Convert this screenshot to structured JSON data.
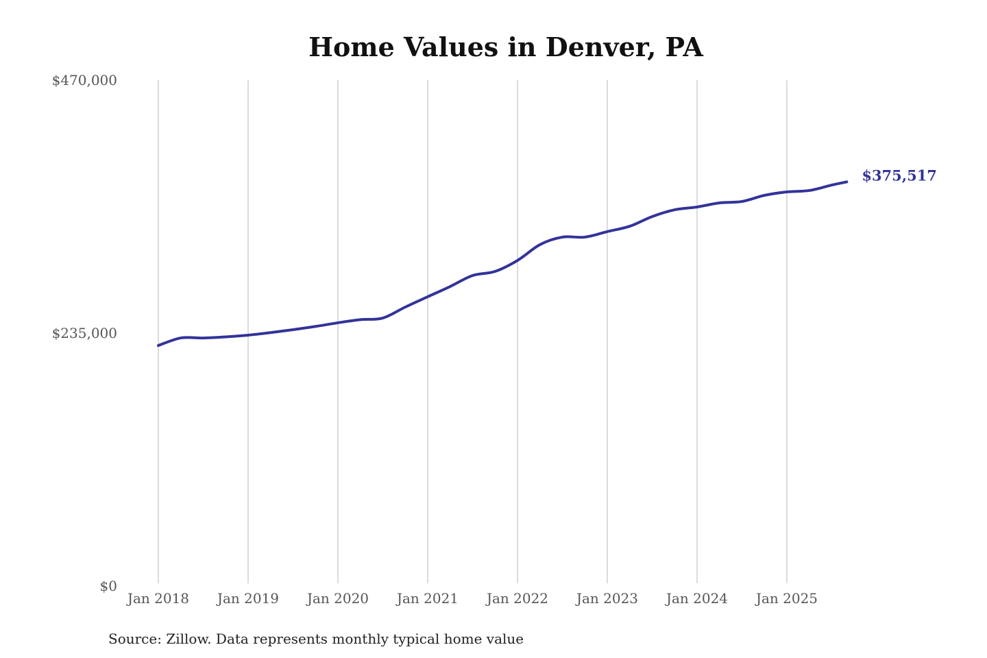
{
  "chart_data": {
    "type": "line",
    "title": "Home Values in Denver, PA",
    "xlabel": "",
    "ylabel": "",
    "ylim": [
      0,
      470000
    ],
    "y_ticks": [
      "$0",
      "$235,000",
      "$470,000"
    ],
    "y_tick_values": [
      0,
      235000,
      470000
    ],
    "x_ticks": [
      "Jan 2018",
      "Jan 2019",
      "Jan 2020",
      "Jan 2021",
      "Jan 2022",
      "Jan 2023",
      "Jan 2024",
      "Jan 2025"
    ],
    "x_tick_dates": [
      "2018-01",
      "2019-01",
      "2020-01",
      "2021-01",
      "2022-01",
      "2023-01",
      "2024-01",
      "2025-01"
    ],
    "grid": "vertical",
    "line_color": "#33339a",
    "end_label": "$375,517",
    "x": [
      "2018-01",
      "2018-04",
      "2018-07",
      "2018-10",
      "2019-01",
      "2019-04",
      "2019-07",
      "2019-10",
      "2020-01",
      "2020-04",
      "2020-07",
      "2020-10",
      "2021-01",
      "2021-04",
      "2021-07",
      "2021-10",
      "2022-01",
      "2022-04",
      "2022-07",
      "2022-10",
      "2023-01",
      "2023-04",
      "2023-07",
      "2023-10",
      "2024-01",
      "2024-04",
      "2024-07",
      "2024-10",
      "2025-01",
      "2025-04",
      "2025-07",
      "2025-09"
    ],
    "values": [
      223500,
      230500,
      230500,
      231500,
      233100,
      235500,
      238200,
      241200,
      244600,
      247500,
      249000,
      259200,
      268800,
      278300,
      288500,
      292300,
      302500,
      317200,
      324200,
      324200,
      329300,
      334300,
      343300,
      349600,
      352200,
      356000,
      357300,
      363000,
      366200,
      367500,
      372600,
      375517
    ]
  },
  "footer": {
    "source": "Source: Zillow. Data represents monthly typical home value"
  }
}
